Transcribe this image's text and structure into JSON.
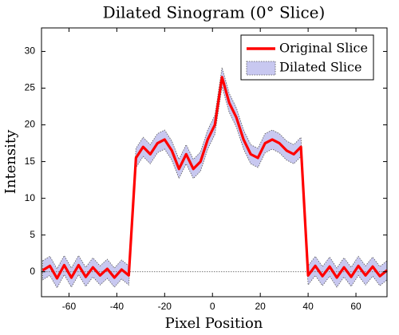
{
  "chart_data": {
    "type": "line",
    "title": "Dilated Sinogram (0° Slice)",
    "xlabel": "Pixel Position",
    "ylabel": "Intensity",
    "x": [
      -71,
      -68,
      -65,
      -62,
      -59,
      -56,
      -53,
      -50,
      -47,
      -44,
      -41,
      -38,
      -35,
      -32,
      -29,
      -26,
      -23,
      -20,
      -17,
      -14,
      -11,
      -8,
      -5,
      -2,
      1,
      4,
      7,
      10,
      13,
      16,
      19,
      22,
      25,
      28,
      31,
      34,
      37,
      40,
      43,
      46,
      49,
      52,
      55,
      58,
      61,
      64,
      67,
      70,
      73
    ],
    "series": [
      {
        "name": "Original Slice",
        "color": "#ff0000",
        "values": [
          0.2,
          0.8,
          -0.9,
          0.9,
          -0.8,
          0.9,
          -0.7,
          0.6,
          -0.5,
          0.4,
          -0.8,
          0.3,
          -0.5,
          15.5,
          17,
          16,
          17.5,
          18,
          16.5,
          14,
          16,
          14,
          15,
          18,
          20,
          26.5,
          23,
          21,
          18,
          16,
          15.5,
          17.5,
          18,
          17.5,
          16.5,
          16,
          17,
          -0.5,
          0.8,
          -0.6,
          0.7,
          -0.8,
          0.6,
          -0.7,
          0.8,
          -0.5,
          0.7,
          -0.6,
          0.2
        ]
      },
      {
        "name": "Dilated Slice",
        "color": "#c8c8f0",
        "upper": [
          1.5,
          2.1,
          0.4,
          2.2,
          0.5,
          2.2,
          0.6,
          1.9,
          0.8,
          1.7,
          0.5,
          1.6,
          0.8,
          16.8,
          18.3,
          17.3,
          18.8,
          19.3,
          17.8,
          15.3,
          17.3,
          15.3,
          16.3,
          19.3,
          21.3,
          27.8,
          24.3,
          22.3,
          19.3,
          17.3,
          16.8,
          18.8,
          19.3,
          18.8,
          17.8,
          17.3,
          18.3,
          0.8,
          2.1,
          0.7,
          2,
          0.5,
          1.9,
          0.6,
          2.1,
          0.8,
          2,
          0.7,
          1.5
        ],
        "lower": [
          -1.1,
          -0.5,
          -2.2,
          -0.4,
          -2.1,
          -0.4,
          -2,
          -0.7,
          -1.8,
          -0.9,
          -2.1,
          -1,
          -1.8,
          14.2,
          15.7,
          14.7,
          16.2,
          16.7,
          15.2,
          12.7,
          14.7,
          12.7,
          13.7,
          16.7,
          18.7,
          25.2,
          21.7,
          19.7,
          16.7,
          14.7,
          14.2,
          16.2,
          16.7,
          16.2,
          15.2,
          14.7,
          15.7,
          -1.8,
          -0.5,
          -1.9,
          -0.6,
          -2.1,
          -0.7,
          -2,
          -0.5,
          -1.8,
          -0.6,
          -1.9,
          -1.1
        ]
      }
    ],
    "baseline": 0,
    "xlim": [
      -71.5,
      73
    ],
    "ylim": [
      -3.4,
      33.2
    ],
    "xticks": [
      -60,
      -40,
      -20,
      0,
      20,
      40,
      60
    ],
    "yticks": [
      0,
      5,
      10,
      15,
      20,
      25,
      30
    ],
    "legend": "upper right"
  }
}
